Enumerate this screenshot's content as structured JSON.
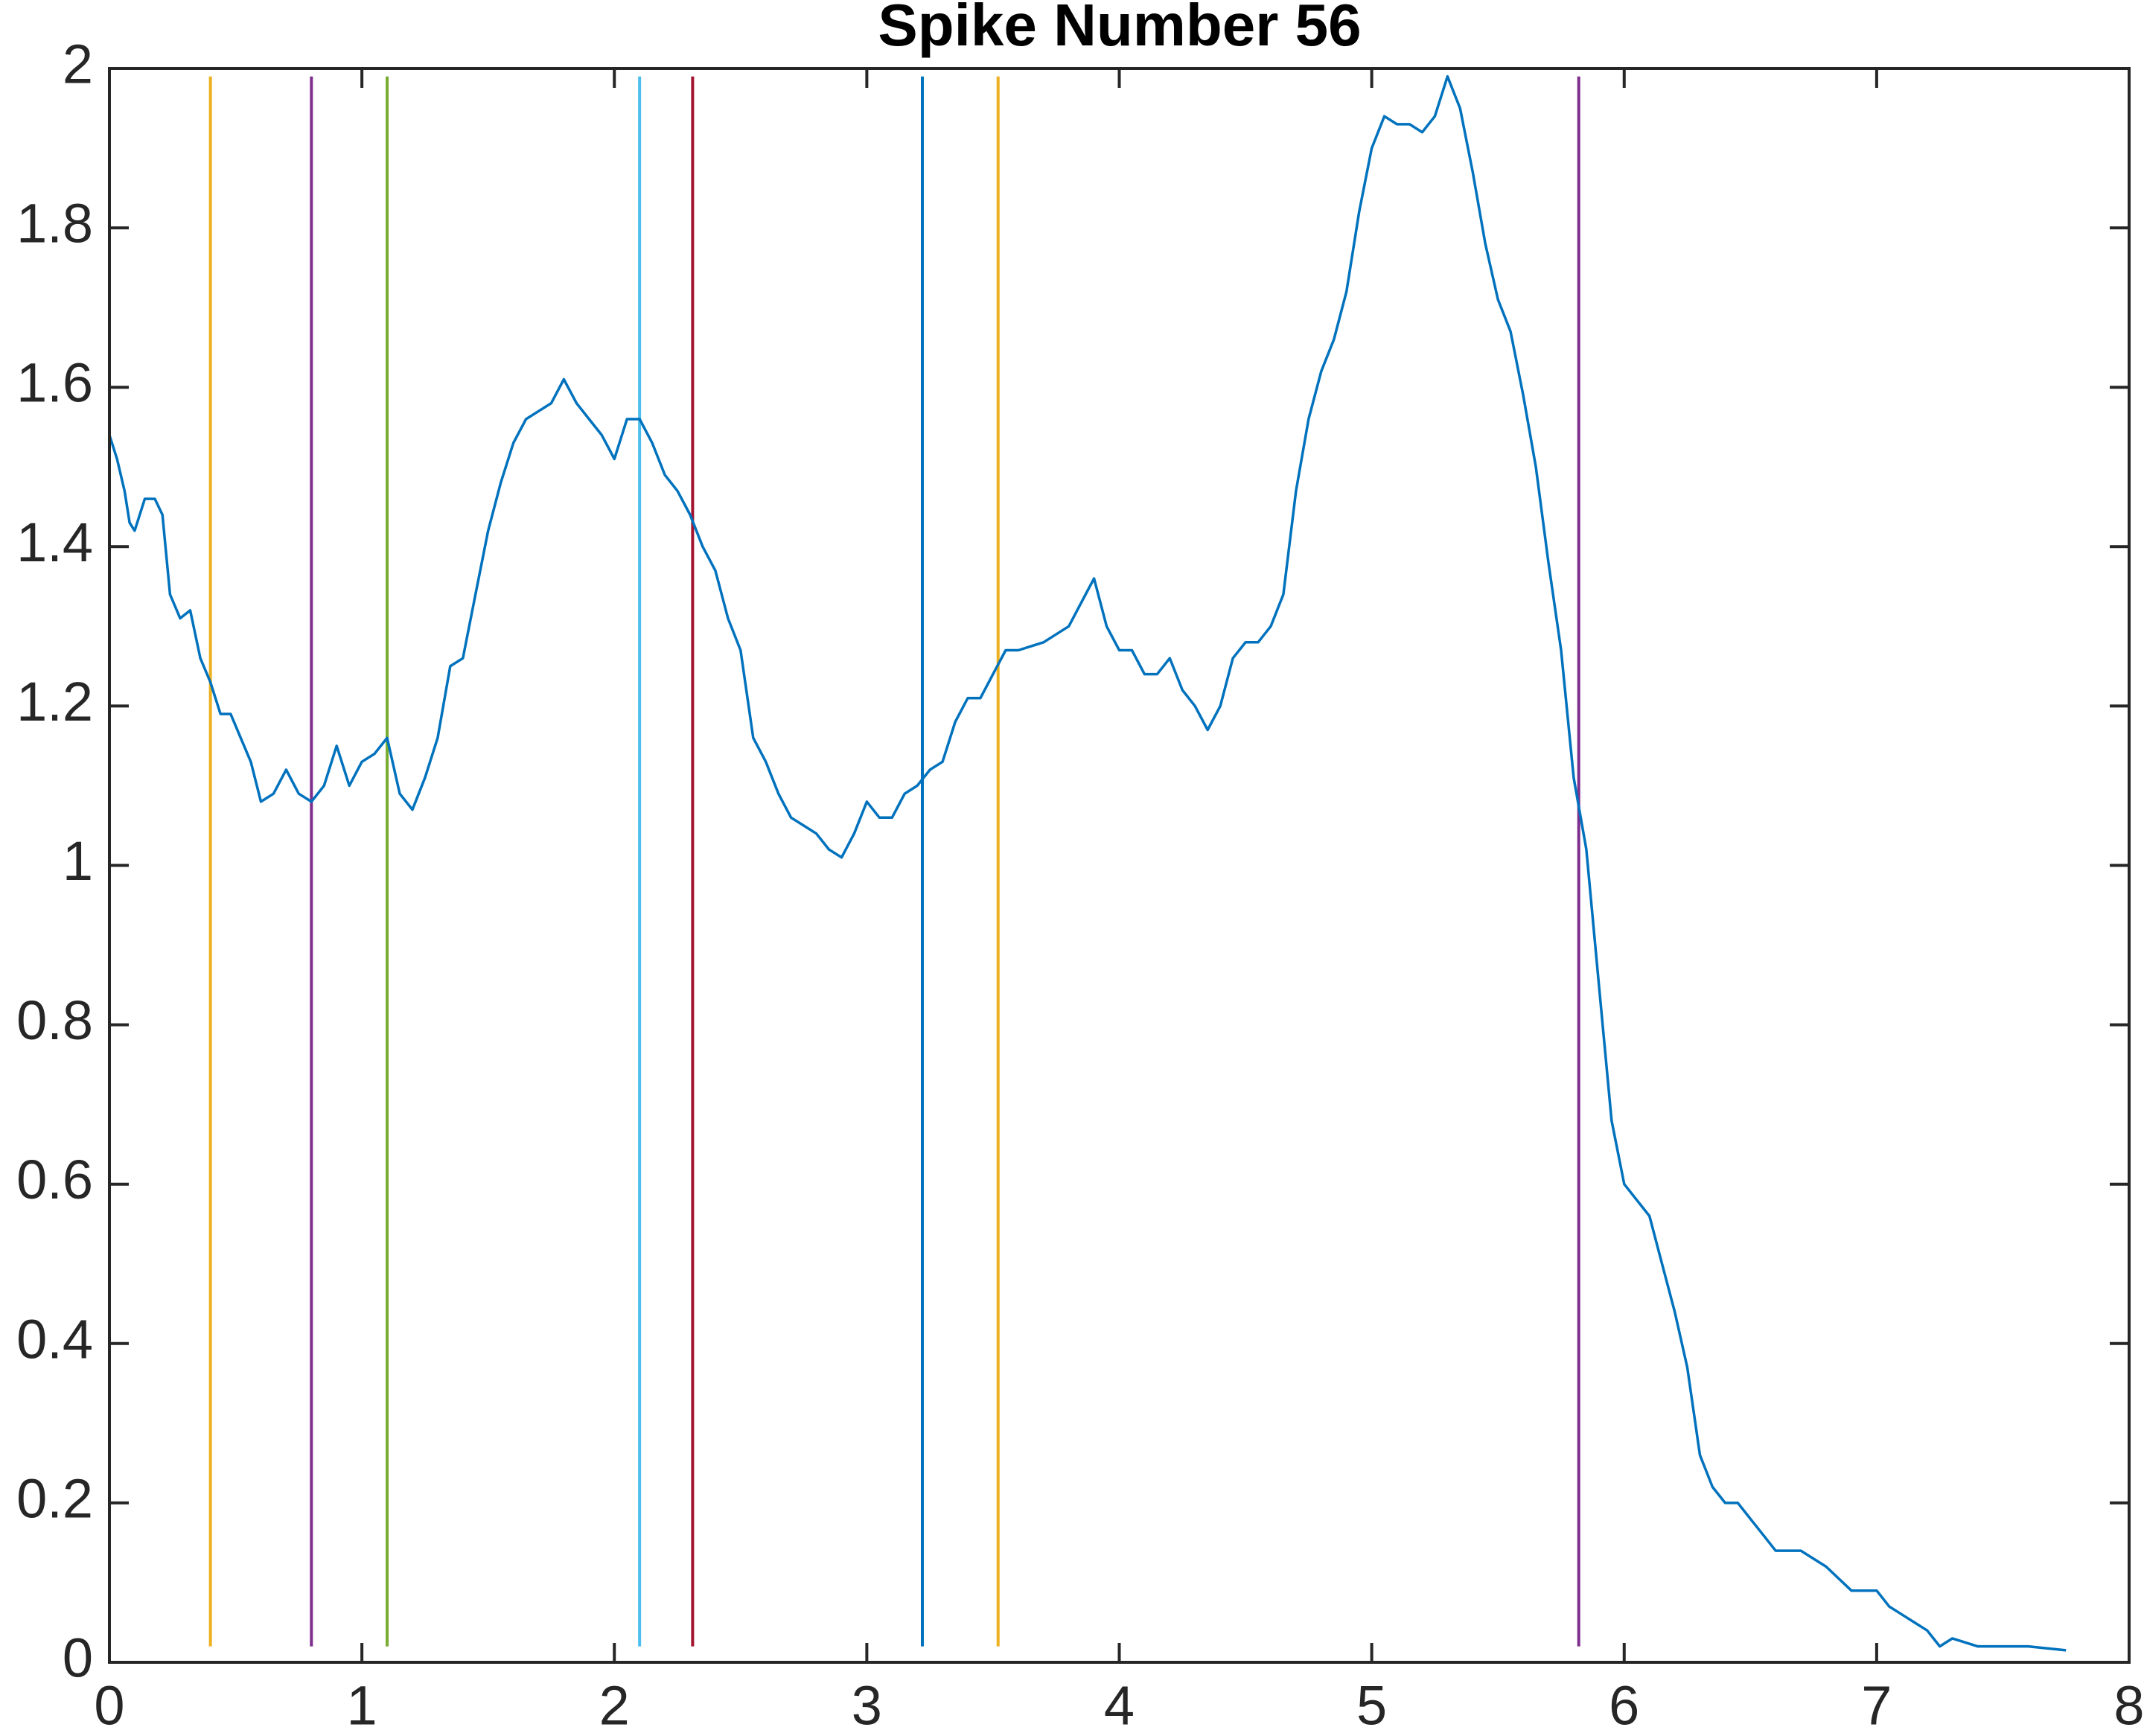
{
  "chart_data": {
    "type": "line",
    "title": "Spike Number 56",
    "color": "#0072bd",
    "x": [
      0,
      0.03,
      0.06,
      0.08,
      0.1,
      0.12,
      0.14,
      0.18,
      0.21,
      0.24,
      0.28,
      0.32,
      0.36,
      0.4,
      0.44,
      0.48,
      0.52,
      0.56,
      0.6,
      0.65,
      0.7,
      0.75,
      0.8,
      0.85,
      0.9,
      0.95,
      1.0,
      1.05,
      1.1,
      1.15,
      1.2,
      1.25,
      1.3,
      1.35,
      1.4,
      1.45,
      1.5,
      1.55,
      1.6,
      1.65,
      1.7,
      1.75,
      1.8,
      1.85,
      1.9,
      1.95,
      2.0,
      2.05,
      2.1,
      2.15,
      2.2,
      2.25,
      2.3,
      2.35,
      2.4,
      2.45,
      2.5,
      2.55,
      2.6,
      2.65,
      2.7,
      2.75,
      2.8,
      2.85,
      2.9,
      2.95,
      3.0,
      3.05,
      3.1,
      3.15,
      3.2,
      3.25,
      3.3,
      3.35,
      3.4,
      3.45,
      3.5,
      3.55,
      3.6,
      3.7,
      3.8,
      3.85,
      3.9,
      3.95,
      4.0,
      4.05,
      4.1,
      4.15,
      4.2,
      4.25,
      4.3,
      4.35,
      4.4,
      4.45,
      4.5,
      4.55,
      4.6,
      4.65,
      4.7,
      4.75,
      4.8,
      4.85,
      4.9,
      4.95,
      5.0,
      5.05,
      5.1,
      5.15,
      5.2,
      5.25,
      5.3,
      5.35,
      5.4,
      5.45,
      5.5,
      5.55,
      5.6,
      5.65,
      5.7,
      5.75,
      5.8,
      5.85,
      5.9,
      5.95,
      6.0,
      6.05,
      6.1,
      6.15,
      6.2,
      6.25,
      6.3,
      6.35,
      6.4,
      6.45,
      6.5,
      6.55,
      6.6,
      6.7,
      6.8,
      6.9,
      7.0,
      7.05,
      7.1,
      7.15,
      7.2,
      7.25,
      7.3,
      7.4,
      7.5,
      7.6,
      7.75
    ],
    "values": [
      1.54,
      1.51,
      1.47,
      1.43,
      1.42,
      1.44,
      1.46,
      1.46,
      1.44,
      1.34,
      1.31,
      1.32,
      1.26,
      1.23,
      1.19,
      1.19,
      1.16,
      1.13,
      1.08,
      1.09,
      1.12,
      1.09,
      1.08,
      1.1,
      1.15,
      1.1,
      1.13,
      1.14,
      1.16,
      1.09,
      1.07,
      1.11,
      1.16,
      1.25,
      1.26,
      1.34,
      1.42,
      1.48,
      1.53,
      1.56,
      1.57,
      1.58,
      1.61,
      1.58,
      1.56,
      1.54,
      1.51,
      1.56,
      1.56,
      1.53,
      1.49,
      1.47,
      1.44,
      1.4,
      1.37,
      1.31,
      1.27,
      1.16,
      1.13,
      1.09,
      1.06,
      1.05,
      1.04,
      1.02,
      1.01,
      1.04,
      1.08,
      1.06,
      1.06,
      1.09,
      1.1,
      1.12,
      1.13,
      1.18,
      1.21,
      1.21,
      1.24,
      1.27,
      1.27,
      1.28,
      1.3,
      1.33,
      1.36,
      1.3,
      1.27,
      1.27,
      1.24,
      1.24,
      1.26,
      1.22,
      1.2,
      1.17,
      1.2,
      1.26,
      1.28,
      1.28,
      1.3,
      1.34,
      1.47,
      1.56,
      1.62,
      1.66,
      1.72,
      1.82,
      1.9,
      1.94,
      1.93,
      1.93,
      1.92,
      1.94,
      1.99,
      1.95,
      1.87,
      1.78,
      1.71,
      1.67,
      1.59,
      1.5,
      1.38,
      1.27,
      1.11,
      1.02,
      0.85,
      0.68,
      0.6,
      0.58,
      0.56,
      0.5,
      0.44,
      0.37,
      0.26,
      0.22,
      0.2,
      0.2,
      0.18,
      0.16,
      0.14,
      0.14,
      0.12,
      0.09,
      0.09,
      0.07,
      0.06,
      0.05,
      0.04,
      0.02,
      0.03,
      0.02,
      0.02,
      0.02,
      0.015
    ],
    "vlines": [
      {
        "x": 0,
        "y": [
          0.02,
          1.99
        ],
        "color": "#d95319"
      },
      {
        "x": 0.4,
        "y": [
          0.02,
          1.99
        ],
        "color": "#edb120"
      },
      {
        "x": 0.8,
        "y": [
          0.02,
          1.99
        ],
        "color": "#7e2f8e"
      },
      {
        "x": 1.1,
        "y": [
          0.02,
          1.99
        ],
        "color": "#77ac30"
      },
      {
        "x": 2.1,
        "y": [
          0.02,
          1.99
        ],
        "color": "#4dbeee"
      },
      {
        "x": 2.31,
        "y": [
          0.02,
          1.99
        ],
        "color": "#a2142f"
      },
      {
        "x": 3.22,
        "y": [
          0.02,
          1.99
        ],
        "color": "#0072bd"
      },
      {
        "x": 3.52,
        "y": [
          0.02,
          1.99
        ],
        "color": "#edb120"
      },
      {
        "x": 5.82,
        "y": [
          0.02,
          1.99
        ],
        "color": "#7e2f8e"
      }
    ],
    "xlim": [
      0,
      8
    ],
    "xticks": [
      0,
      1,
      2,
      3,
      4,
      5,
      6,
      7,
      8
    ],
    "ylim": [
      0,
      2
    ],
    "yticks": [
      0,
      0.2,
      0.4,
      0.6,
      0.8,
      1,
      1.2,
      1.4,
      1.6,
      1.8,
      2
    ]
  }
}
